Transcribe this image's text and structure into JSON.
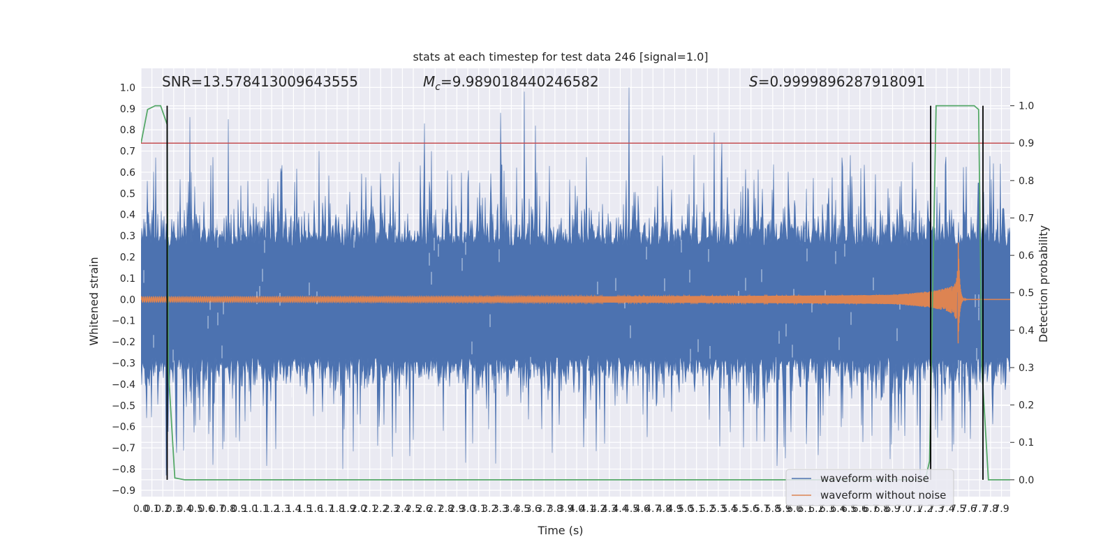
{
  "chart_data": {
    "type": "line",
    "title": "stats at each timestep for test data 246 [signal=1.0]",
    "xlabel": "Time (s)",
    "ylabel": "Whitened strain",
    "y2label": "Detection probability",
    "xlim": [
      0.0,
      7.98
    ],
    "ylim": [
      -0.93,
      1.09
    ],
    "y2lim": [
      -0.045,
      1.1
    ],
    "grid": true,
    "annotations": {
      "snr": "SNR=13.578413009643555",
      "mc_symbol": "M",
      "mc_sub": "c",
      "mc_value": "=9.989018440246582",
      "s_symbol": "S",
      "s_value": "=0.9999896287918091"
    },
    "x_ticks": [
      "0.0",
      "0.1",
      "0.2",
      "0.3",
      "0.4",
      "0.5",
      "0.6",
      "0.7",
      "0.8",
      "0.9",
      "1.0",
      "1.1",
      "1.2",
      "1.3",
      "1.4",
      "1.5",
      "1.6",
      "1.7",
      "1.8",
      "1.9",
      "2.0",
      "2.1",
      "2.2",
      "2.3",
      "2.4",
      "2.5",
      "2.6",
      "2.7",
      "2.8",
      "2.9",
      "3.0",
      "3.1",
      "3.2",
      "3.3",
      "3.4",
      "3.5",
      "3.6",
      "3.7",
      "3.8",
      "3.9",
      "4.0",
      "4.1",
      "4.2",
      "4.3",
      "4.4",
      "4.5",
      "4.6",
      "4.7",
      "4.8",
      "4.9",
      "5.0",
      "5.1",
      "5.2",
      "5.3",
      "5.4",
      "5.5",
      "5.6",
      "5.7",
      "5.8",
      "5.9",
      "6.0",
      "6.1",
      "6.2",
      "6.3",
      "6.4",
      "6.5",
      "6.6",
      "6.7",
      "6.8",
      "6.9",
      "7.0",
      "7.1",
      "7.2",
      "7.3",
      "7.4",
      "7.5",
      "7.6",
      "7.7",
      "7.8",
      "7.9"
    ],
    "y_ticks": [
      "1.0",
      "0.9",
      "0.8",
      "0.7",
      "0.6",
      "0.5",
      "0.4",
      "0.3",
      "0.2",
      "0.1",
      "0.0",
      "-0.1",
      "-0.2",
      "-0.3",
      "-0.4",
      "-0.5",
      "-0.6",
      "-0.7",
      "-0.8",
      "-0.9"
    ],
    "y2_ticks": [
      "1.0",
      "0.9",
      "0.8",
      "0.7",
      "0.6",
      "0.5",
      "0.4",
      "0.3",
      "0.2",
      "0.1",
      "0.0"
    ],
    "series": [
      {
        "name": "waveform with noise",
        "color": "#4c72b0",
        "kind": "noise",
        "envelope": 0.45,
        "max": 1.0,
        "min": -0.8
      },
      {
        "name": "waveform without noise",
        "color": "#dd8452",
        "kind": "chirp",
        "merger_time": 7.5,
        "peak_amplitude": 0.38
      },
      {
        "color": "#55a868",
        "axis": "right",
        "kind": "probability",
        "x": [
          0.0,
          0.06,
          0.13,
          0.18,
          0.24,
          0.25,
          0.31,
          0.4,
          7.2,
          7.24,
          7.3,
          7.38,
          7.65,
          7.69,
          7.72,
          7.78,
          7.98
        ],
        "values": [
          0.9,
          0.99,
          1.0,
          1.0,
          0.95,
          0.3,
          0.005,
          0.0,
          0.0,
          0.05,
          1.0,
          1.0,
          1.0,
          0.99,
          0.3,
          0.0,
          0.0
        ]
      }
    ],
    "threshold_line": {
      "value": 0.9,
      "axis": "right",
      "color": "#c44e52"
    },
    "vertical_lines": [
      0.24,
      7.25,
      7.73
    ],
    "legend_position": "lower right"
  }
}
